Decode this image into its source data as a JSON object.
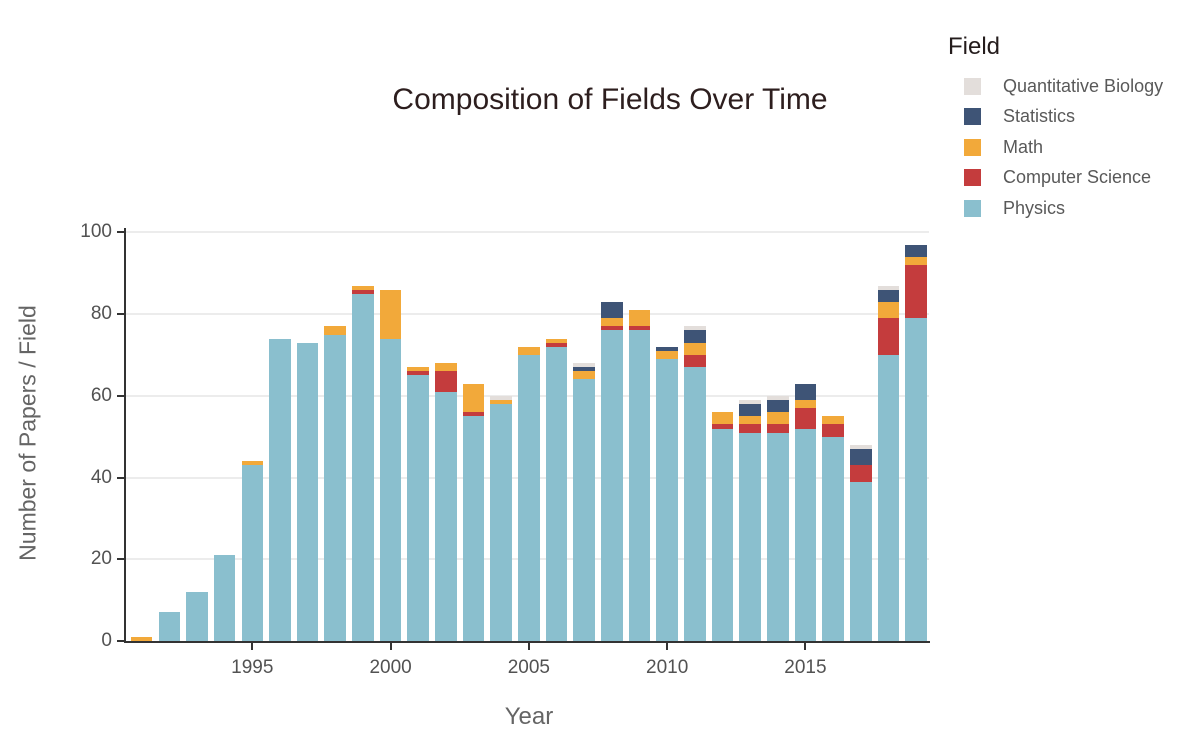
{
  "chart_data": {
    "type": "bar",
    "stacked": true,
    "title": "Composition of Fields Over Time",
    "xlabel": "Year",
    "ylabel": "Number of Papers / Field",
    "legend_title": "Field",
    "legend_position": "top-right",
    "legend_order_top_to_bottom": [
      "Quantitative Biology",
      "Statistics",
      "Math",
      "Computer Science",
      "Physics"
    ],
    "grid": "horizontal",
    "x": [
      1991,
      1992,
      1993,
      1994,
      1995,
      1996,
      1997,
      1998,
      1999,
      2000,
      2001,
      2002,
      2003,
      2004,
      2005,
      2006,
      2007,
      2008,
      2009,
      2010,
      2011,
      2012,
      2013,
      2014,
      2015,
      2016,
      2017,
      2018,
      2019
    ],
    "x_ticks": [
      1995,
      2000,
      2005,
      2010,
      2015
    ],
    "y_ticks": [
      0,
      20,
      40,
      60,
      80,
      100
    ],
    "ylim": [
      0,
      100
    ],
    "series": [
      {
        "name": "Physics",
        "color": "#8abfce",
        "values": [
          0,
          7,
          12,
          21,
          43,
          74,
          73,
          75,
          85,
          74,
          65,
          61,
          55,
          58,
          70,
          72,
          64,
          76,
          76,
          69,
          67,
          52,
          51,
          51,
          52,
          50,
          39,
          70,
          79
        ]
      },
      {
        "name": "Computer Science",
        "color": "#c43c3d",
        "values": [
          0,
          0,
          0,
          0,
          0,
          0,
          0,
          0,
          1,
          0,
          1,
          5,
          1,
          0,
          0,
          1,
          0,
          1,
          1,
          0,
          3,
          1,
          2,
          2,
          5,
          3,
          4,
          9,
          13
        ]
      },
      {
        "name": "Math",
        "color": "#f2a93a",
        "values": [
          1,
          0,
          0,
          0,
          1,
          0,
          0,
          2,
          1,
          12,
          1,
          2,
          7,
          1,
          2,
          1,
          2,
          2,
          4,
          2,
          3,
          3,
          2,
          3,
          2,
          2,
          0,
          4,
          2
        ]
      },
      {
        "name": "Statistics",
        "color": "#3e5476",
        "values": [
          0,
          0,
          0,
          0,
          0,
          0,
          0,
          0,
          0,
          0,
          0,
          0,
          0,
          0,
          0,
          0,
          1,
          4,
          0,
          1,
          3,
          0,
          3,
          3,
          4,
          0,
          4,
          3,
          3
        ]
      },
      {
        "name": "Quantitative Biology",
        "color": "#e3dedb",
        "values": [
          0,
          0,
          0,
          0,
          0,
          0,
          0,
          0,
          0,
          0,
          0,
          0,
          0,
          1,
          0,
          0,
          1,
          0,
          0,
          0,
          1,
          0,
          1,
          1,
          0,
          0,
          1,
          1,
          0
        ]
      }
    ]
  }
}
